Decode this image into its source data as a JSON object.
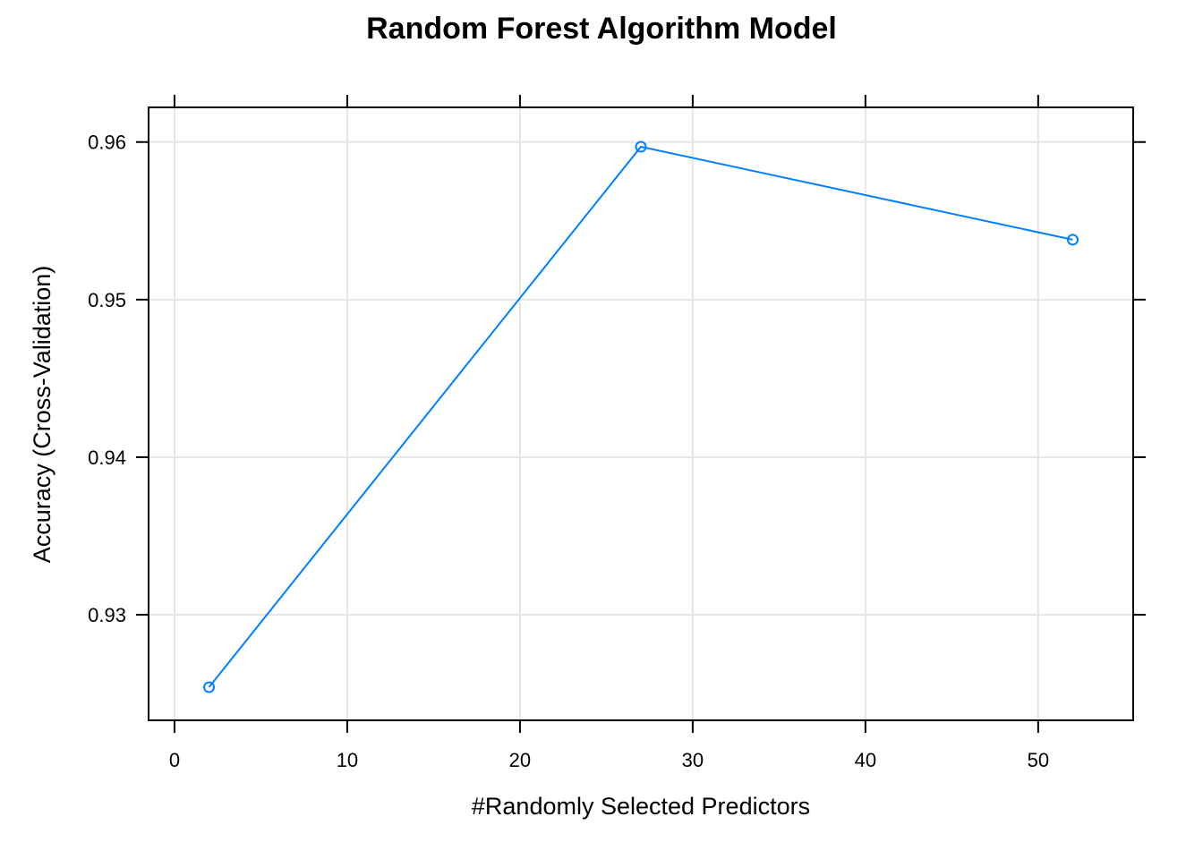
{
  "chart_data": {
    "type": "line",
    "title": "Random Forest Algorithm Model",
    "xlabel": "#Randomly Selected Predictors",
    "ylabel": "Accuracy (Cross-Validation)",
    "x": [
      2,
      27,
      52
    ],
    "series": [
      {
        "values": [
          0.9254,
          0.9597,
          0.9538
        ]
      }
    ],
    "xlim": [
      -1.5,
      55.5
    ],
    "ylim": [
      0.9233,
      0.9622
    ],
    "xticks": [
      0,
      10,
      20,
      30,
      40,
      50
    ],
    "yticks": [
      0.93,
      0.94,
      0.95,
      0.96
    ],
    "xtick_labels": [
      "0",
      "10",
      "20",
      "30",
      "40",
      "50"
    ],
    "ytick_labels": [
      "0.93",
      "0.94",
      "0.95",
      "0.96"
    ],
    "grid": true,
    "line_color": "#0080ff",
    "grid_color": "#e6e6e6",
    "marker": "open-circle"
  }
}
